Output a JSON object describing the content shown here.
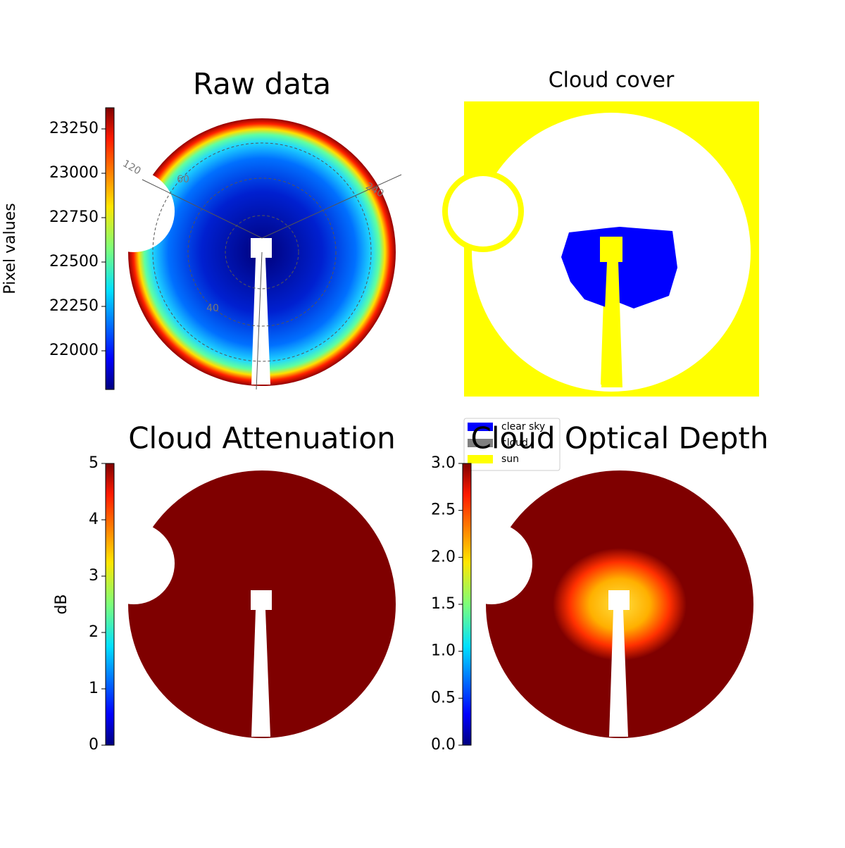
{
  "chart_data": [
    {
      "type": "image",
      "title": "Raw data",
      "colormap": "jet",
      "colorbar": {
        "label": "Pixel values",
        "clim": [
          21782,
          23369
        ],
        "ticks": [
          22000,
          22250,
          22500,
          22750,
          23000,
          23250
        ]
      },
      "annotations": [
        "120",
        "60",
        "240",
        "40"
      ]
    },
    {
      "type": "image",
      "title": "Cloud cover",
      "series": [
        {
          "name": "clear sky",
          "color": "#0000ff"
        },
        {
          "name": "cloud",
          "color": "#808080"
        },
        {
          "name": "sun",
          "color": "#ffff00"
        }
      ]
    },
    {
      "type": "image",
      "title": "Cloud Attenuation",
      "colormap": "jet",
      "colorbar": {
        "label": "dB",
        "clim": [
          0,
          5
        ],
        "ticks": [
          0,
          1,
          2,
          3,
          4,
          5
        ]
      }
    },
    {
      "type": "image",
      "title": "Cloud Optical Depth",
      "colormap": "jet",
      "colorbar": {
        "clim": [
          0,
          3
        ],
        "ticks": [
          {
            "value": 0,
            "label": "0.0"
          },
          {
            "value": 0.5,
            "label": "0.5"
          },
          {
            "value": 1,
            "label": "1.0"
          },
          {
            "value": 1.5,
            "label": "1.5"
          },
          {
            "value": 2,
            "label": "2.0"
          },
          {
            "value": 2.5,
            "label": "2.5"
          },
          {
            "value": 3,
            "label": "3.0"
          }
        ]
      }
    }
  ]
}
